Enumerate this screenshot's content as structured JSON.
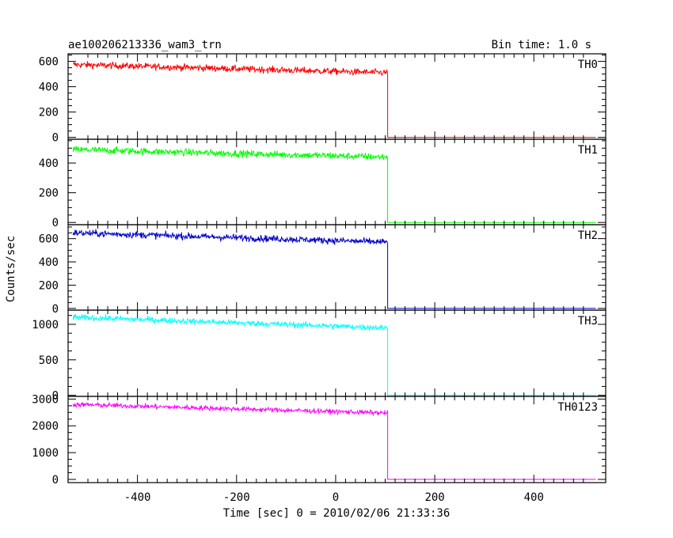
{
  "chart_data": {
    "type": "line",
    "title": "ae100206213336_wam3_trn",
    "subtitle": "Bin time: 1.0 s",
    "xlabel": "Time [sec] 0 = 2010/02/06 21:33:36",
    "ylabel": "Counts/sec",
    "xlim": [
      -540,
      545
    ],
    "xticks": [
      -400,
      -200,
      0,
      200,
      400
    ],
    "grid": false,
    "panels": [
      {
        "name": "TH0",
        "color": "#ff0000",
        "ylim": [
          -15,
          660
        ],
        "yticks": [
          0,
          200,
          400,
          600
        ],
        "series": [
          {
            "name": "TH0",
            "x_start": -530,
            "x_drop": 105,
            "x_end": 525,
            "y_start": 575,
            "y_before_drop": 510,
            "y_after_drop": 0,
            "noise": 50
          }
        ]
      },
      {
        "name": "TH1",
        "color": "#00ff00",
        "ylim": [
          -15,
          560
        ],
        "yticks": [
          0,
          200,
          400
        ],
        "series": [
          {
            "name": "TH1",
            "x_start": -530,
            "x_drop": 105,
            "x_end": 525,
            "y_start": 490,
            "y_before_drop": 440,
            "y_after_drop": 0,
            "noise": 45
          }
        ]
      },
      {
        "name": "TH2",
        "color": "#0000cc",
        "ylim": [
          -15,
          720
        ],
        "yticks": [
          0,
          200,
          400,
          600
        ],
        "series": [
          {
            "name": "TH2",
            "x_start": -530,
            "x_drop": 105,
            "x_end": 525,
            "y_start": 650,
            "y_before_drop": 570,
            "y_after_drop": 0,
            "noise": 55
          }
        ]
      },
      {
        "name": "TH3",
        "color": "#00ffff",
        "ylim": [
          -15,
          1200
        ],
        "yticks": [
          0,
          500,
          1000
        ],
        "series": [
          {
            "name": "TH3",
            "x_start": -530,
            "x_drop": 105,
            "x_end": 525,
            "y_start": 1100,
            "y_before_drop": 950,
            "y_after_drop": 0,
            "noise": 80
          }
        ]
      },
      {
        "name": "TH0123",
        "color": "#ff00ff",
        "ylim": [
          -120,
          3100
        ],
        "yticks": [
          0,
          1000,
          2000,
          3000
        ],
        "series": [
          {
            "name": "TH0123",
            "x_start": -530,
            "x_drop": 105,
            "x_end": 525,
            "y_start": 2800,
            "y_before_drop": 2480,
            "y_after_drop": 0,
            "noise": 170
          }
        ]
      }
    ]
  }
}
